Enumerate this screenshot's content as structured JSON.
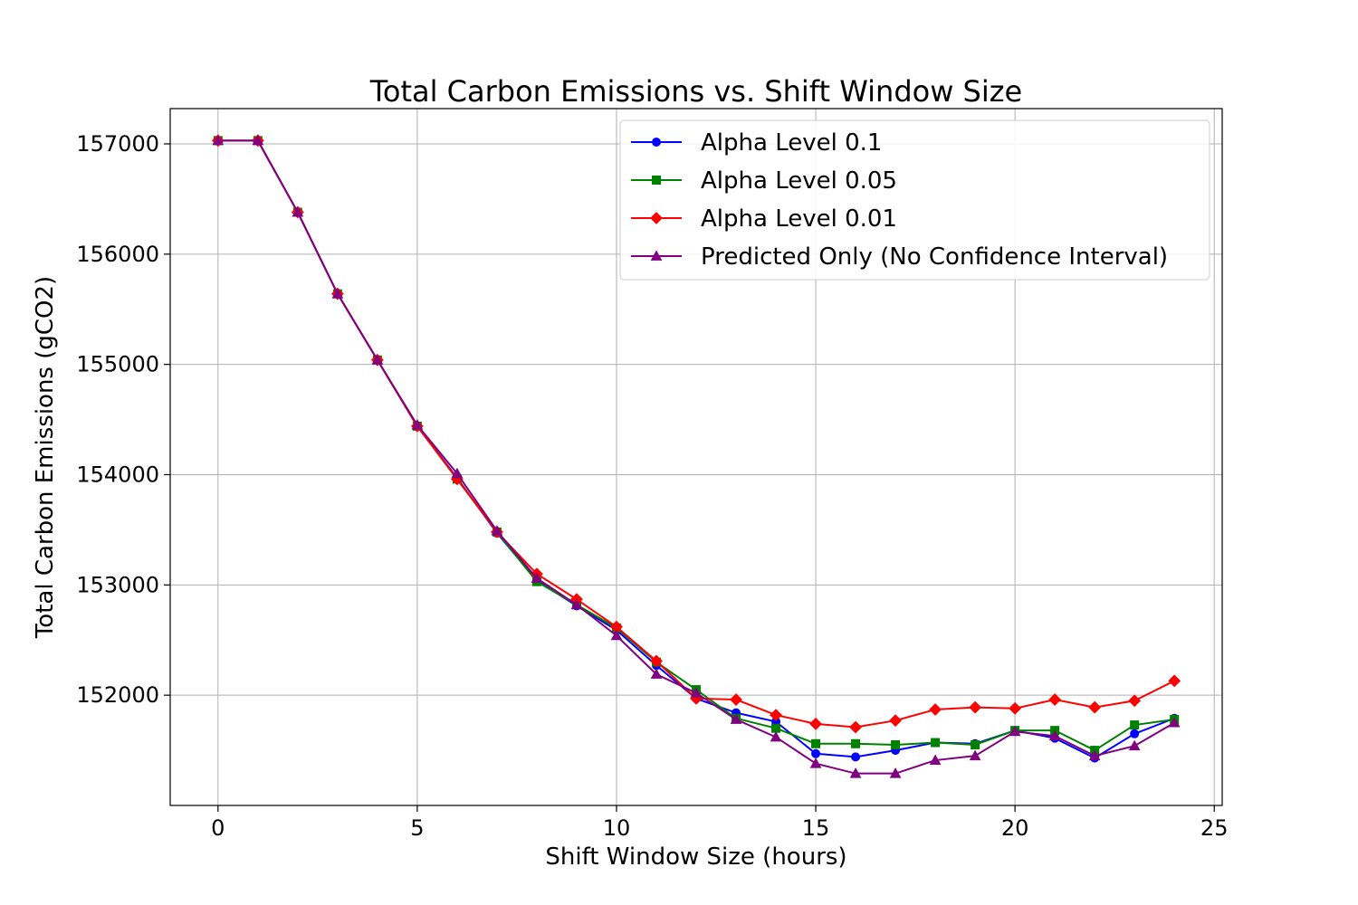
{
  "chart_data": {
    "type": "line",
    "title": "Total Carbon Emissions vs. Shift Window Size",
    "xlabel": "Shift Window Size (hours)",
    "ylabel": "Total Carbon Emissions (gCO2)",
    "xlim": [
      -1.2,
      25.2
    ],
    "ylim": [
      151000,
      157320
    ],
    "xticks": [
      0,
      5,
      10,
      15,
      20,
      25
    ],
    "yticks": [
      152000,
      153000,
      154000,
      155000,
      156000,
      157000
    ],
    "grid": true,
    "legend": "top-right",
    "x": [
      0,
      1,
      2,
      3,
      4,
      5,
      6,
      7,
      8,
      9,
      10,
      11,
      12,
      13,
      14,
      15,
      16,
      17,
      18,
      19,
      20,
      21,
      22,
      23,
      24
    ],
    "series": [
      {
        "name": "Alpha Level 0.1",
        "color": "#0000ff",
        "marker": "circle",
        "values": [
          157030,
          157030,
          156380,
          155640,
          155040,
          154440,
          153970,
          153470,
          153040,
          152810,
          152590,
          152270,
          151970,
          151840,
          151760,
          151470,
          151440,
          151500,
          151570,
          151560,
          151680,
          151610,
          151430,
          151650,
          151790
        ]
      },
      {
        "name": "Alpha Level 0.05",
        "color": "#008000",
        "marker": "square",
        "values": [
          157030,
          157030,
          156380,
          155640,
          155040,
          154440,
          153960,
          153480,
          153030,
          152820,
          152610,
          152300,
          152050,
          151790,
          151700,
          151560,
          151560,
          151550,
          151570,
          151550,
          151680,
          151680,
          151500,
          151730,
          151780
        ]
      },
      {
        "name": "Alpha Level 0.01",
        "color": "#ff0000",
        "marker": "diamond",
        "values": [
          157030,
          157030,
          156380,
          155640,
          155040,
          154440,
          153960,
          153480,
          153100,
          152870,
          152620,
          152310,
          151970,
          151960,
          151820,
          151740,
          151710,
          151770,
          151870,
          151890,
          151880,
          151960,
          151890,
          151950,
          152130
        ]
      },
      {
        "name": "Predicted Only (No Confidence Interval)",
        "color": "#800080",
        "marker": "triangle",
        "values": [
          157030,
          157030,
          156380,
          155640,
          155040,
          154450,
          154010,
          153490,
          153060,
          152820,
          152540,
          152190,
          152020,
          151780,
          151620,
          151380,
          151290,
          151290,
          151410,
          151450,
          151670,
          151630,
          151450,
          151540,
          151750
        ]
      }
    ]
  }
}
